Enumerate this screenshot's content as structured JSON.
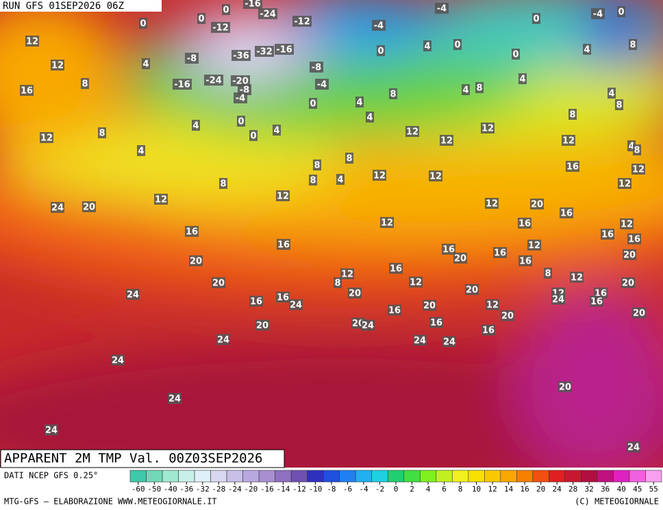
{
  "header": {
    "run": "RUN GFS 01SEP2026 06Z",
    "field": "APPARENT 2M TMP Val. 00Z03SEP2026"
  },
  "footer": {
    "source": "DATI NCEP GFS 0.25°",
    "credit": "MTG-GFS — ELABORAZIONE WWW.METEOGIORNALE.IT",
    "copyright": "(C) METEOGIORNALE"
  },
  "colorbar": {
    "ticks": [
      -60,
      -50,
      -40,
      -36,
      -32,
      -28,
      -24,
      -20,
      -16,
      -14,
      -12,
      -10,
      -8,
      -6,
      -4,
      -2,
      0,
      2,
      4,
      6,
      8,
      10,
      12,
      14,
      16,
      20,
      24,
      28,
      32,
      36,
      40,
      45,
      55
    ],
    "colors": [
      "#40c8a8",
      "#70d8b8",
      "#a0e8d0",
      "#c8f0e8",
      "#e0f0f8",
      "#d8d8f0",
      "#c8c0e8",
      "#b8a8e0",
      "#a890d0",
      "#9070c0",
      "#7050b0",
      "#3030c0",
      "#2050e0",
      "#2080f0",
      "#20b0f0",
      "#20d0e0",
      "#20d070",
      "#40e040",
      "#80f020",
      "#c0f020",
      "#f0f020",
      "#f8e000",
      "#f8c800",
      "#f8a800",
      "#f88000",
      "#f05010",
      "#e02020",
      "#c81830",
      "#b01040",
      "#c01080",
      "#e020c0",
      "#f060e0",
      "#f8a0f0"
    ]
  },
  "map_labels": [
    0,
    0,
    0,
    -16,
    -24,
    -12,
    -12,
    -4,
    -4,
    0,
    -4,
    0,
    12,
    12,
    8,
    16,
    4,
    -8,
    -36,
    -32,
    -16,
    0,
    4,
    0,
    0,
    4,
    8,
    -8,
    -24,
    -20,
    -16,
    -8,
    -4,
    -4,
    0,
    4,
    8,
    4,
    4,
    8,
    8,
    4,
    4,
    0,
    0,
    4,
    4,
    8,
    12,
    4,
    12,
    12,
    12,
    8,
    12,
    4,
    8,
    8,
    8,
    8,
    4,
    12,
    12,
    16,
    12,
    12,
    8,
    12,
    12,
    24,
    20,
    12,
    20,
    16,
    12,
    16,
    12,
    16,
    16,
    16,
    16,
    16,
    20,
    16,
    12,
    16,
    20,
    20,
    16,
    12,
    8,
    8,
    12,
    20,
    12,
    20,
    20,
    24,
    16,
    16,
    24,
    20,
    12,
    24,
    16,
    16,
    20,
    12,
    16,
    20,
    20,
    20,
    20,
    24,
    16,
    16,
    24,
    24,
    24,
    24,
    20,
    24,
    24,
    24
  ]
}
